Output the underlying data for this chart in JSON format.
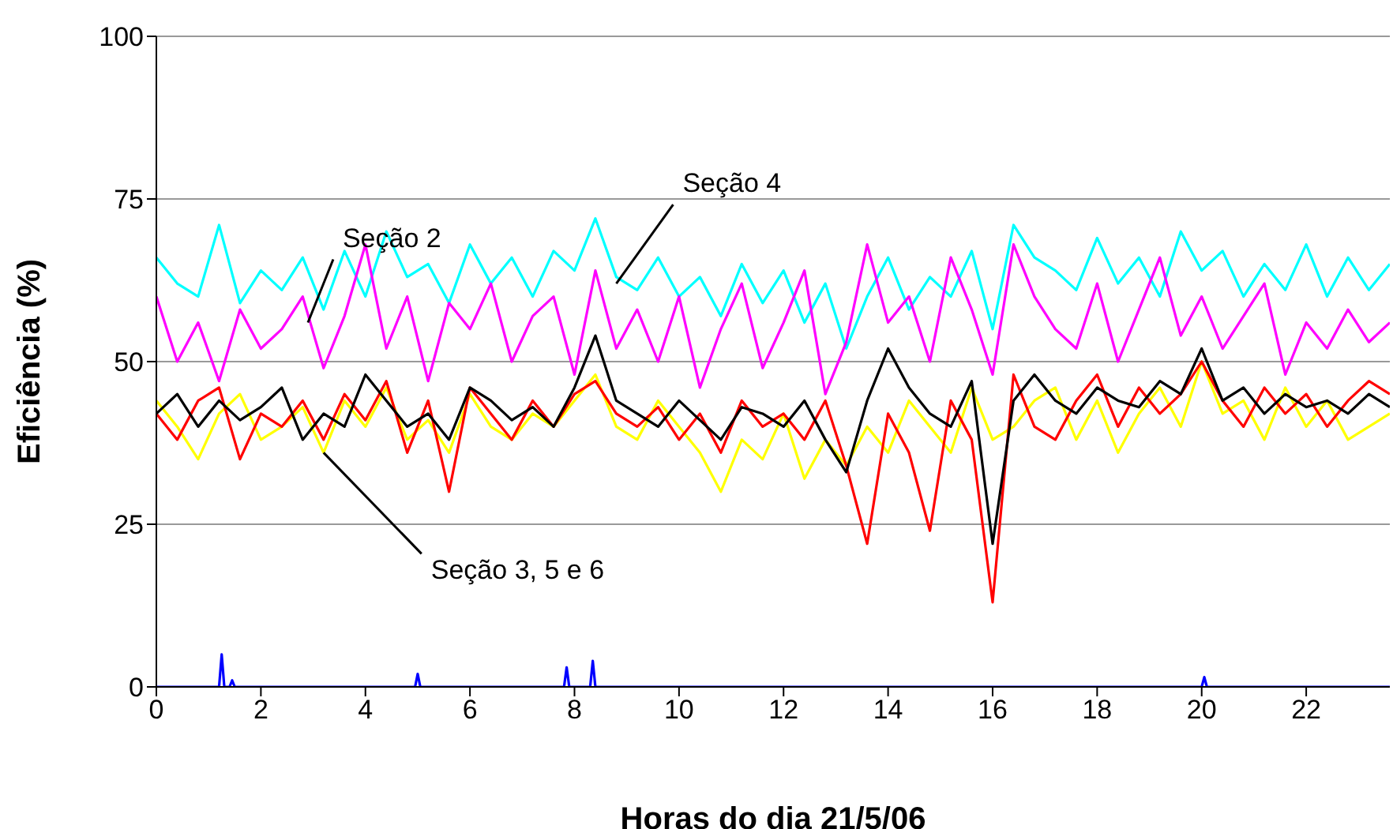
{
  "chart_data": {
    "type": "line",
    "xlabel": "Horas do dia 21/5/06",
    "ylabel": "Eficiência (%)",
    "xlim": [
      0,
      23.6
    ],
    "xticks": [
      0,
      2,
      4,
      6,
      8,
      10,
      12,
      14,
      16,
      18,
      20,
      22
    ],
    "ylim": [
      0,
      100
    ],
    "yticks": [
      0,
      25,
      50,
      75,
      100
    ],
    "grid": "y",
    "marker": "none",
    "line_style": "solid",
    "x": [
      0,
      0.4,
      0.8,
      1.2,
      1.6,
      2.0,
      2.4,
      2.8,
      3.2,
      3.6,
      4.0,
      4.4,
      4.8,
      5.2,
      5.6,
      6.0,
      6.4,
      6.8,
      7.2,
      7.6,
      8.0,
      8.4,
      8.8,
      9.2,
      9.6,
      10.0,
      10.4,
      10.8,
      11.2,
      11.6,
      12.0,
      12.4,
      12.8,
      13.2,
      13.6,
      14.0,
      14.4,
      14.8,
      15.2,
      15.6,
      16.0,
      16.4,
      16.8,
      17.2,
      17.6,
      18.0,
      18.4,
      18.8,
      19.2,
      19.6,
      20.0,
      20.4,
      20.8,
      21.2,
      21.6,
      22.0,
      22.4,
      22.8,
      23.2,
      23.6
    ],
    "series": [
      {
        "color": "#00ffff",
        "values": [
          66,
          62,
          60,
          71,
          59,
          64,
          61,
          66,
          58,
          67,
          60,
          70,
          63,
          65,
          59,
          68,
          62,
          66,
          60,
          67,
          64,
          72,
          63,
          61,
          66,
          60,
          63,
          57,
          65,
          59,
          64,
          56,
          62,
          52,
          60,
          66,
          58,
          63,
          60,
          67,
          55,
          71,
          66,
          64,
          61,
          69,
          62,
          66,
          60,
          70,
          64,
          67,
          60,
          65,
          61,
          68,
          60,
          66,
          61,
          65
        ]
      },
      {
        "color": "#ff00ff",
        "values": [
          60,
          50,
          56,
          47,
          58,
          52,
          55,
          60,
          49,
          57,
          68,
          52,
          60,
          47,
          59,
          55,
          62,
          50,
          57,
          60,
          48,
          64,
          52,
          58,
          50,
          60,
          46,
          55,
          62,
          49,
          56,
          64,
          45,
          53,
          68,
          56,
          60,
          50,
          66,
          58,
          48,
          68,
          60,
          55,
          52,
          62,
          50,
          58,
          66,
          54,
          60,
          52,
          57,
          62,
          48,
          56,
          52,
          58,
          53,
          56
        ]
      },
      {
        "color": "#ffff00",
        "values": [
          44,
          40,
          35,
          42,
          45,
          38,
          40,
          43,
          36,
          44,
          40,
          46,
          38,
          41,
          36,
          45,
          40,
          38,
          42,
          40,
          44,
          48,
          40,
          38,
          44,
          40,
          36,
          30,
          38,
          35,
          42,
          32,
          38,
          34,
          40,
          36,
          44,
          40,
          36,
          46,
          38,
          40,
          44,
          46,
          38,
          44,
          36,
          42,
          46,
          40,
          50,
          42,
          44,
          38,
          46,
          40,
          44,
          38,
          40,
          42
        ]
      },
      {
        "color": "#ff0000",
        "values": [
          42,
          38,
          44,
          46,
          35,
          42,
          40,
          44,
          38,
          45,
          41,
          47,
          36,
          44,
          30,
          46,
          42,
          38,
          44,
          40,
          45,
          47,
          42,
          40,
          43,
          38,
          42,
          36,
          44,
          40,
          42,
          38,
          44,
          34,
          22,
          42,
          36,
          24,
          44,
          38,
          13,
          48,
          40,
          38,
          44,
          48,
          40,
          46,
          42,
          45,
          50,
          44,
          40,
          46,
          42,
          45,
          40,
          44,
          47,
          45
        ]
      },
      {
        "color": "#000000",
        "values": [
          42,
          45,
          40,
          44,
          41,
          43,
          46,
          38,
          42,
          40,
          48,
          44,
          40,
          42,
          38,
          46,
          44,
          41,
          43,
          40,
          46,
          54,
          44,
          42,
          40,
          44,
          41,
          38,
          43,
          42,
          40,
          44,
          38,
          33,
          44,
          52,
          46,
          42,
          40,
          47,
          22,
          44,
          48,
          44,
          42,
          46,
          44,
          43,
          47,
          45,
          52,
          44,
          46,
          42,
          45,
          43,
          44,
          42,
          45,
          43
        ]
      },
      {
        "color": "#0000ff",
        "x": [
          0,
          1.2,
          1.25,
          1.3,
          1.4,
          1.45,
          1.5,
          4.95,
          5.0,
          5.05,
          7.8,
          7.85,
          7.9,
          8.3,
          8.35,
          8.4,
          20.0,
          20.05,
          20.1,
          23.6
        ],
        "values": [
          0,
          0,
          5,
          0,
          0,
          1,
          0,
          0,
          2,
          0,
          0,
          3,
          0,
          0,
          4,
          0,
          0,
          1.5,
          0,
          0
        ]
      }
    ],
    "annotations": [
      {
        "text": "Seção 2",
        "x": 2.9,
        "y": 56
      },
      {
        "text": "Seção 4",
        "x": 8.8,
        "y": 62
      },
      {
        "text": "Seção 3, 5 e 6",
        "x": 3.2,
        "y": 36
      }
    ]
  }
}
